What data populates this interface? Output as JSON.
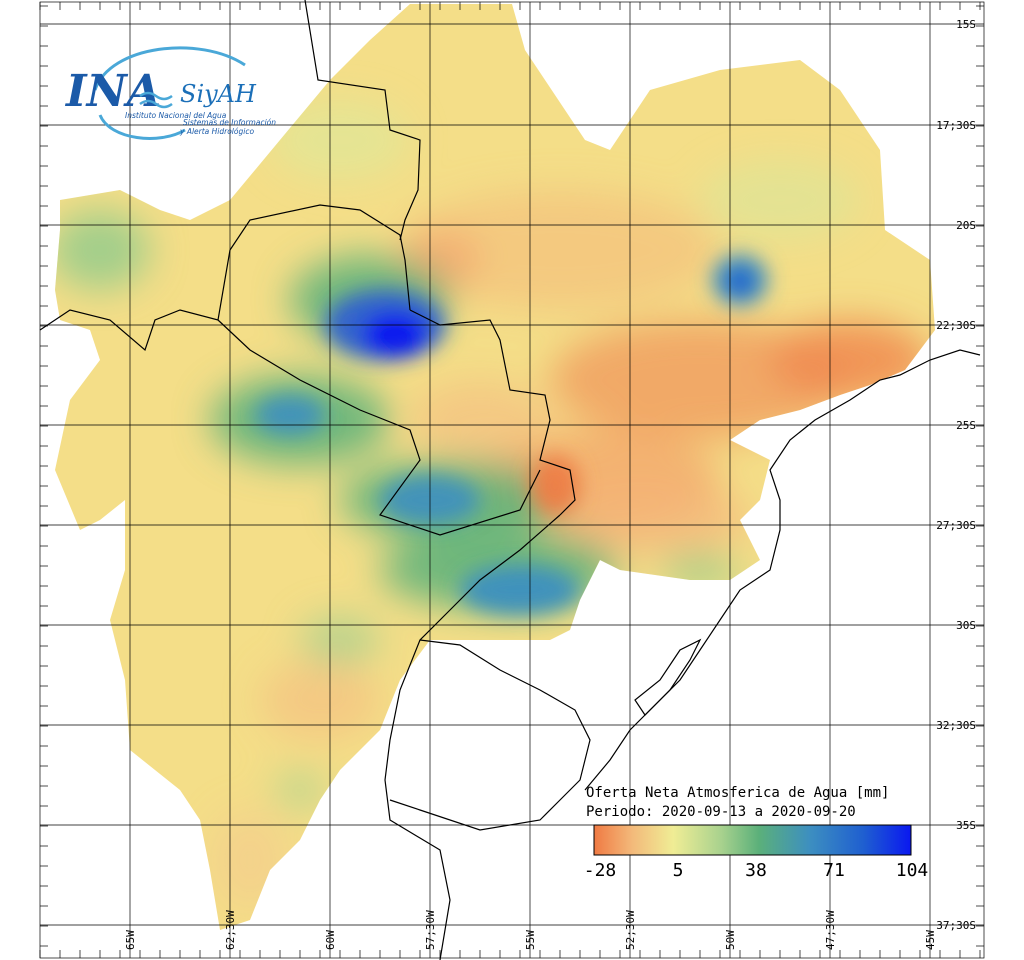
{
  "logo": {
    "main": "INA",
    "brand": "SiyAH",
    "line1": "Instituto Nacional del Agua",
    "line2": "Sistemas de Información",
    "line3": "y Alerta Hidrológico"
  },
  "latitude_labels": [
    "15S",
    "17;30S",
    "20S",
    "22;30S",
    "25S",
    "27;30S",
    "30S",
    "32;30S",
    "35S",
    "37;30S"
  ],
  "longitude_labels": [
    "65W",
    "62;30W",
    "60W",
    "57;30W",
    "55W",
    "52;30W",
    "50W",
    "47;30W",
    "45W"
  ],
  "legend": {
    "title": "Oferta Neta Atmosferica de Agua [mm]",
    "period": "Periodo: 2020-09-13 a 2020-09-20",
    "ticks": [
      "-28",
      "5",
      "38",
      "71",
      "104"
    ],
    "colors": [
      "#f07a43",
      "#f3c57e",
      "#f0ed95",
      "#a9d28e",
      "#5bb07a",
      "#3d8fc0",
      "#1f5fd0",
      "#0a18f0"
    ]
  },
  "colors": {
    "background": "#ffffff",
    "base_field": "#f4de88",
    "grid": "#000000"
  }
}
